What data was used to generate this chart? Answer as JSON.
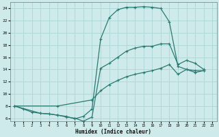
{
  "xlabel": "Humidex (Indice chaleur)",
  "xlim": [
    -0.5,
    23.5
  ],
  "ylim": [
    5.5,
    25.0
  ],
  "yticks": [
    6,
    8,
    10,
    12,
    14,
    16,
    18,
    20,
    22,
    24
  ],
  "xticks": [
    0,
    1,
    2,
    3,
    4,
    5,
    6,
    7,
    8,
    9,
    10,
    11,
    12,
    13,
    14,
    15,
    16,
    17,
    18,
    19,
    20,
    21,
    22,
    23
  ],
  "bg_color": "#ceeaea",
  "line_color": "#2a7a72",
  "grid_color": "#b0d8d8",
  "curve1_x": [
    0,
    1,
    2,
    3,
    4,
    5,
    6,
    7,
    8,
    9,
    10,
    11,
    12,
    13,
    14,
    15,
    16,
    17,
    18,
    19,
    20,
    21,
    22
  ],
  "curve1_y": [
    8.0,
    7.5,
    7.0,
    6.8,
    6.7,
    6.5,
    6.3,
    5.9,
    6.3,
    7.5,
    19.0,
    22.5,
    23.8,
    24.2,
    24.2,
    24.3,
    24.2,
    24.0,
    21.8,
    14.5,
    14.0,
    13.8,
    13.8
  ],
  "curve2_x": [
    0,
    3,
    4,
    5,
    6,
    7,
    8,
    9,
    10,
    11,
    12,
    13,
    14,
    15,
    16,
    17,
    18,
    19,
    20,
    21,
    22
  ],
  "curve2_y": [
    8.0,
    6.8,
    6.7,
    6.5,
    6.2,
    6.0,
    5.5,
    6.2,
    14.2,
    15.0,
    16.0,
    17.0,
    17.5,
    17.8,
    17.8,
    18.2,
    18.2,
    14.8,
    15.5,
    15.0,
    14.0
  ],
  "curve3_x": [
    0,
    5,
    9,
    10,
    11,
    12,
    13,
    14,
    15,
    16,
    17,
    18,
    19,
    20,
    21,
    22
  ],
  "curve3_y": [
    8.0,
    8.0,
    9.0,
    10.5,
    11.5,
    12.2,
    12.8,
    13.2,
    13.5,
    13.8,
    14.2,
    14.8,
    13.2,
    14.0,
    13.5,
    13.8
  ]
}
